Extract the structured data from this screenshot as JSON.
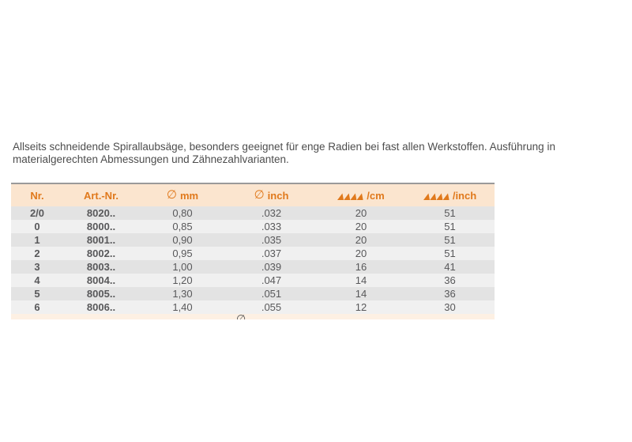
{
  "intro": {
    "text": "Allseits schneidende Spirallaubsäge, besonders geeignet für enge Radien bei fast allen Werkstoffen. Ausführung in materialgerechten Abmessungen und Zähnezahlvarianten."
  },
  "table": {
    "headers": [
      {
        "name": "nr",
        "label": "Nr."
      },
      {
        "name": "art-nr",
        "label": "Art.-Nr."
      },
      {
        "name": "diameter-mm",
        "symbol": "∅",
        "label": "mm"
      },
      {
        "name": "diameter-inch",
        "symbol": "∅",
        "label": "inch"
      },
      {
        "name": "teeth-per-cm",
        "icon": "saw-teeth-icon",
        "label": "/cm"
      },
      {
        "name": "teeth-per-inch",
        "icon": "saw-teeth-icon",
        "label": "/inch"
      }
    ],
    "rows": [
      [
        "2/0",
        "8020..",
        "0,80",
        ".032",
        "20",
        "51"
      ],
      [
        "0",
        "8000..",
        "0,85",
        ".033",
        "20",
        "51"
      ],
      [
        "1",
        "8001..",
        "0,90",
        ".035",
        "20",
        "51"
      ],
      [
        "2",
        "8002..",
        "0,95",
        ".037",
        "20",
        "51"
      ],
      [
        "3",
        "8003..",
        "1,00",
        ".039",
        "16",
        "41"
      ],
      [
        "4",
        "8004..",
        "1,20",
        ".047",
        "14",
        "36"
      ],
      [
        "5",
        "8005..",
        "1,30",
        ".051",
        "14",
        "36"
      ],
      [
        "6",
        "8006..",
        "1,40",
        ".055",
        "12",
        "30"
      ]
    ],
    "footer_clipped_symbol": "∅"
  },
  "colors": {
    "accent_orange": "#e0791c",
    "header_bg": "#fbe5cf",
    "footer_bg": "#fdf0e3",
    "row_dark": "#e3e3e3",
    "row_light": "#f0f0f0",
    "top_border_gray": "#9a9a9a",
    "body_text": "#58585a"
  }
}
